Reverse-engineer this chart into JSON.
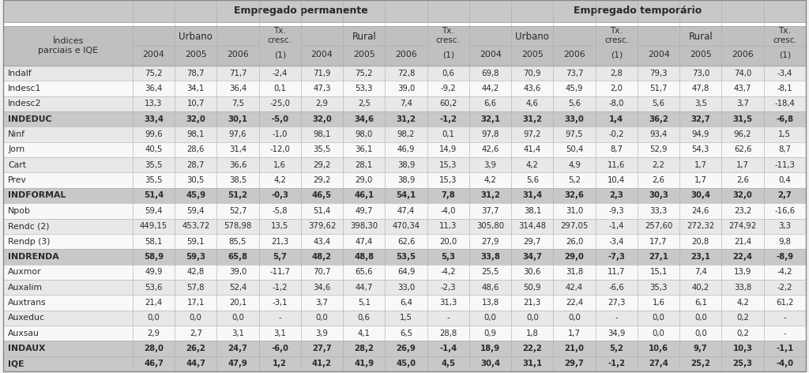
{
  "title_perm": "Empregado permanente",
  "title_temp": "Empregado temporário",
  "rows": [
    [
      "Indalf",
      "75,2",
      "78,7",
      "71,7",
      "-2,4",
      "71,9",
      "75,2",
      "72,8",
      "0,6",
      "69,8",
      "70,9",
      "73,7",
      "2,8",
      "79,3",
      "73,0",
      "74,0",
      "-3,4"
    ],
    [
      "Indesc1",
      "36,4",
      "34,1",
      "36,4",
      "0,1",
      "47,3",
      "53,3",
      "39,0",
      "-9,2",
      "44,2",
      "43,6",
      "45,9",
      "2,0",
      "51,7",
      "47,8",
      "43,7",
      "-8,1"
    ],
    [
      "Indesc2",
      "13,3",
      "10,7",
      "7,5",
      "-25,0",
      "2,9",
      "2,5",
      "7,4",
      "60,2",
      "6,6",
      "4,6",
      "5,6",
      "-8,0",
      "5,6",
      "3,5",
      "3,7",
      "-18,4"
    ],
    [
      "INDEDUC",
      "33,4",
      "32,0",
      "30,1",
      "-5,0",
      "32,0",
      "34,6",
      "31,2",
      "-1,2",
      "32,1",
      "31,2",
      "33,0",
      "1,4",
      "36,2",
      "32,7",
      "31,5",
      "-6,8"
    ],
    [
      "Ninf",
      "99,6",
      "98,1",
      "97,6",
      "-1,0",
      "98,1",
      "98,0",
      "98,2",
      "0,1",
      "97,8",
      "97,2",
      "97,5",
      "-0,2",
      "93,4",
      "94,9",
      "96,2",
      "1,5"
    ],
    [
      "Jorn",
      "40,5",
      "28,6",
      "31,4",
      "-12,0",
      "35,5",
      "36,1",
      "46,9",
      "14,9",
      "42,6",
      "41,4",
      "50,4",
      "8,7",
      "52,9",
      "54,3",
      "62,6",
      "8,7"
    ],
    [
      "Cart",
      "35,5",
      "28,7",
      "36,6",
      "1,6",
      "29,2",
      "28,1",
      "38,9",
      "15,3",
      "3,9",
      "4,2",
      "4,9",
      "11,6",
      "2,2",
      "1,7",
      "1,7",
      "-11,3"
    ],
    [
      "Prev",
      "35,5",
      "30,5",
      "38,5",
      "4,2",
      "29,2",
      "29,0",
      "38,9",
      "15,3",
      "4,2",
      "5,6",
      "5,2",
      "10,4",
      "2,6",
      "1,7",
      "2,6",
      "0,4"
    ],
    [
      "INDFORMAL",
      "51,4",
      "45,9",
      "51,2",
      "-0,3",
      "46,5",
      "46,1",
      "54,1",
      "7,8",
      "31,2",
      "31,4",
      "32,6",
      "2,3",
      "30,3",
      "30,4",
      "32,0",
      "2,7"
    ],
    [
      "Npob",
      "59,4",
      "59,4",
      "52,7",
      "-5,8",
      "51,4",
      "49,7",
      "47,4",
      "-4,0",
      "37,7",
      "38,1",
      "31,0",
      "-9,3",
      "33,3",
      "24,6",
      "23,2",
      "-16,6"
    ],
    [
      "Rendc (2)",
      "449,15",
      "453,72",
      "578,98",
      "13,5",
      "379,62",
      "398,30",
      "470,34",
      "11,3",
      "305,80",
      "314,48",
      "297,05",
      "-1,4",
      "257,60",
      "272,32",
      "274,92",
      "3,3"
    ],
    [
      "Rendp (3)",
      "58,1",
      "59,1",
      "85,5",
      "21,3",
      "43,4",
      "47,4",
      "62,6",
      "20,0",
      "27,9",
      "29,7",
      "26,0",
      "-3,4",
      "17,7",
      "20,8",
      "21,4",
      "9,8"
    ],
    [
      "INDRENDA",
      "58,9",
      "59,3",
      "65,8",
      "5,7",
      "48,2",
      "48,8",
      "53,5",
      "5,3",
      "33,8",
      "34,7",
      "29,0",
      "-7,3",
      "27,1",
      "23,1",
      "22,4",
      "-8,9"
    ],
    [
      "Auxmor",
      "49,9",
      "42,8",
      "39,0",
      "-11,7",
      "70,7",
      "65,6",
      "64,9",
      "-4,2",
      "25,5",
      "30,6",
      "31,8",
      "11,7",
      "15,1",
      "7,4",
      "13,9",
      "-4,2"
    ],
    [
      "Auxalim",
      "53,6",
      "57,8",
      "52,4",
      "-1,2",
      "34,6",
      "44,7",
      "33,0",
      "-2,3",
      "48,6",
      "50,9",
      "42,4",
      "-6,6",
      "35,3",
      "40,2",
      "33,8",
      "-2,2"
    ],
    [
      "Auxtrans",
      "21,4",
      "17,1",
      "20,1",
      "-3,1",
      "3,7",
      "5,1",
      "6,4",
      "31,3",
      "13,8",
      "21,3",
      "22,4",
      "27,3",
      "1,6",
      "6,1",
      "4,2",
      "61,2"
    ],
    [
      "Auxeduc",
      "0,0",
      "0,0",
      "0,0",
      "-",
      "0,0",
      "0,6",
      "1,5",
      "-",
      "0,0",
      "0,0",
      "0,0",
      "-",
      "0,0",
      "0,0",
      "0,2",
      "-"
    ],
    [
      "Auxsau",
      "2,9",
      "2,7",
      "3,1",
      "3,1",
      "3,9",
      "4,1",
      "6,5",
      "28,8",
      "0,9",
      "1,8",
      "1,7",
      "34,9",
      "0,0",
      "0,0",
      "0,2",
      "-"
    ],
    [
      "INDAUX",
      "28,0",
      "26,2",
      "24,7",
      "-6,0",
      "27,7",
      "28,2",
      "26,9",
      "-1,4",
      "18,9",
      "22,2",
      "21,0",
      "5,2",
      "10,6",
      "9,7",
      "10,3",
      "-1,1"
    ],
    [
      "IQE",
      "46,7",
      "44,7",
      "47,9",
      "1,2",
      "41,2",
      "41,9",
      "45,0",
      "4,5",
      "30,4",
      "31,1",
      "29,7",
      "-1,2",
      "27,4",
      "25,2",
      "25,3",
      "-4,0"
    ]
  ],
  "bold_rows": [
    "INDEDUC",
    "INDFORMAL",
    "INDRENDA",
    "INDAUX",
    "IQE"
  ],
  "col_widths_raw": [
    1.6,
    0.52,
    0.52,
    0.52,
    0.52,
    0.52,
    0.52,
    0.52,
    0.52,
    0.52,
    0.52,
    0.52,
    0.52,
    0.52,
    0.52,
    0.52,
    0.52
  ],
  "bg_top": "#c8c8c8",
  "bg_white_gap": "#ffffff",
  "bg_header": "#c0c0c0",
  "bg_odd": "#e8e8e8",
  "bg_even": "#f8f8f8",
  "bg_bold": "#c8c8c8",
  "text_dark": "#2a2a2a",
  "line_color": "#aaaaaa"
}
